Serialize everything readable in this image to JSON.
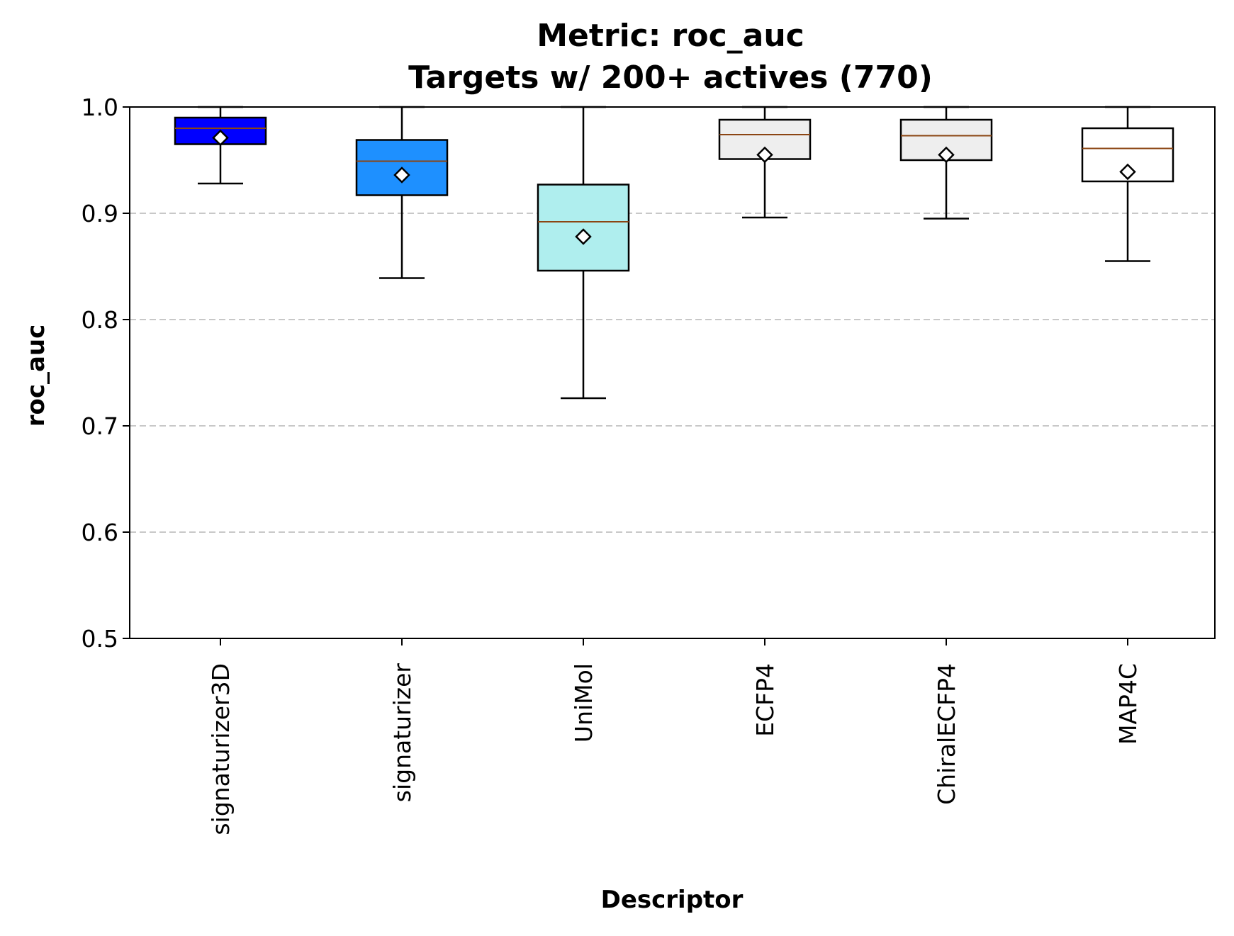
{
  "chart_data": {
    "type": "box",
    "title": "Metric: roc_auc",
    "subtitle": "Targets w/ 200+ actives (770)",
    "xlabel": "Descriptor",
    "ylabel": "roc_auc",
    "ylim": [
      0.5,
      1.0
    ],
    "yticks": [
      "0.5",
      "0.6",
      "0.7",
      "0.8",
      "0.9",
      "1.0"
    ],
    "grid": "horizontal dashed",
    "categories": [
      "signaturizer3D",
      "signaturizer",
      "UniMol",
      "ECFP4",
      "ChiralECFP4",
      "MAP4C"
    ],
    "series": [
      {
        "category": "signaturizer3D",
        "whisker_low": 0.928,
        "q1": 0.965,
        "median": 0.98,
        "q3": 0.99,
        "whisker_high": 1.0,
        "mean": 0.971,
        "color": "#0000ff"
      },
      {
        "category": "signaturizer",
        "whisker_low": 0.839,
        "q1": 0.917,
        "median": 0.949,
        "q3": 0.969,
        "whisker_high": 1.0,
        "mean": 0.936,
        "color": "#1e90ff"
      },
      {
        "category": "UniMol",
        "whisker_low": 0.726,
        "q1": 0.846,
        "median": 0.892,
        "q3": 0.927,
        "whisker_high": 1.0,
        "mean": 0.878,
        "color": "#afeeee"
      },
      {
        "category": "ECFP4",
        "whisker_low": 0.896,
        "q1": 0.951,
        "median": 0.974,
        "q3": 0.988,
        "whisker_high": 1.0,
        "mean": 0.955,
        "color": "#eeeeee"
      },
      {
        "category": "ChiralECFP4",
        "whisker_low": 0.895,
        "q1": 0.95,
        "median": 0.973,
        "q3": 0.988,
        "whisker_high": 1.0,
        "mean": 0.955,
        "color": "#eeeeee"
      },
      {
        "category": "MAP4C",
        "whisker_low": 0.855,
        "q1": 0.93,
        "median": 0.961,
        "q3": 0.98,
        "whisker_high": 1.0,
        "mean": 0.939,
        "color": "#ffffff"
      }
    ],
    "median_color": "#8b4513"
  }
}
